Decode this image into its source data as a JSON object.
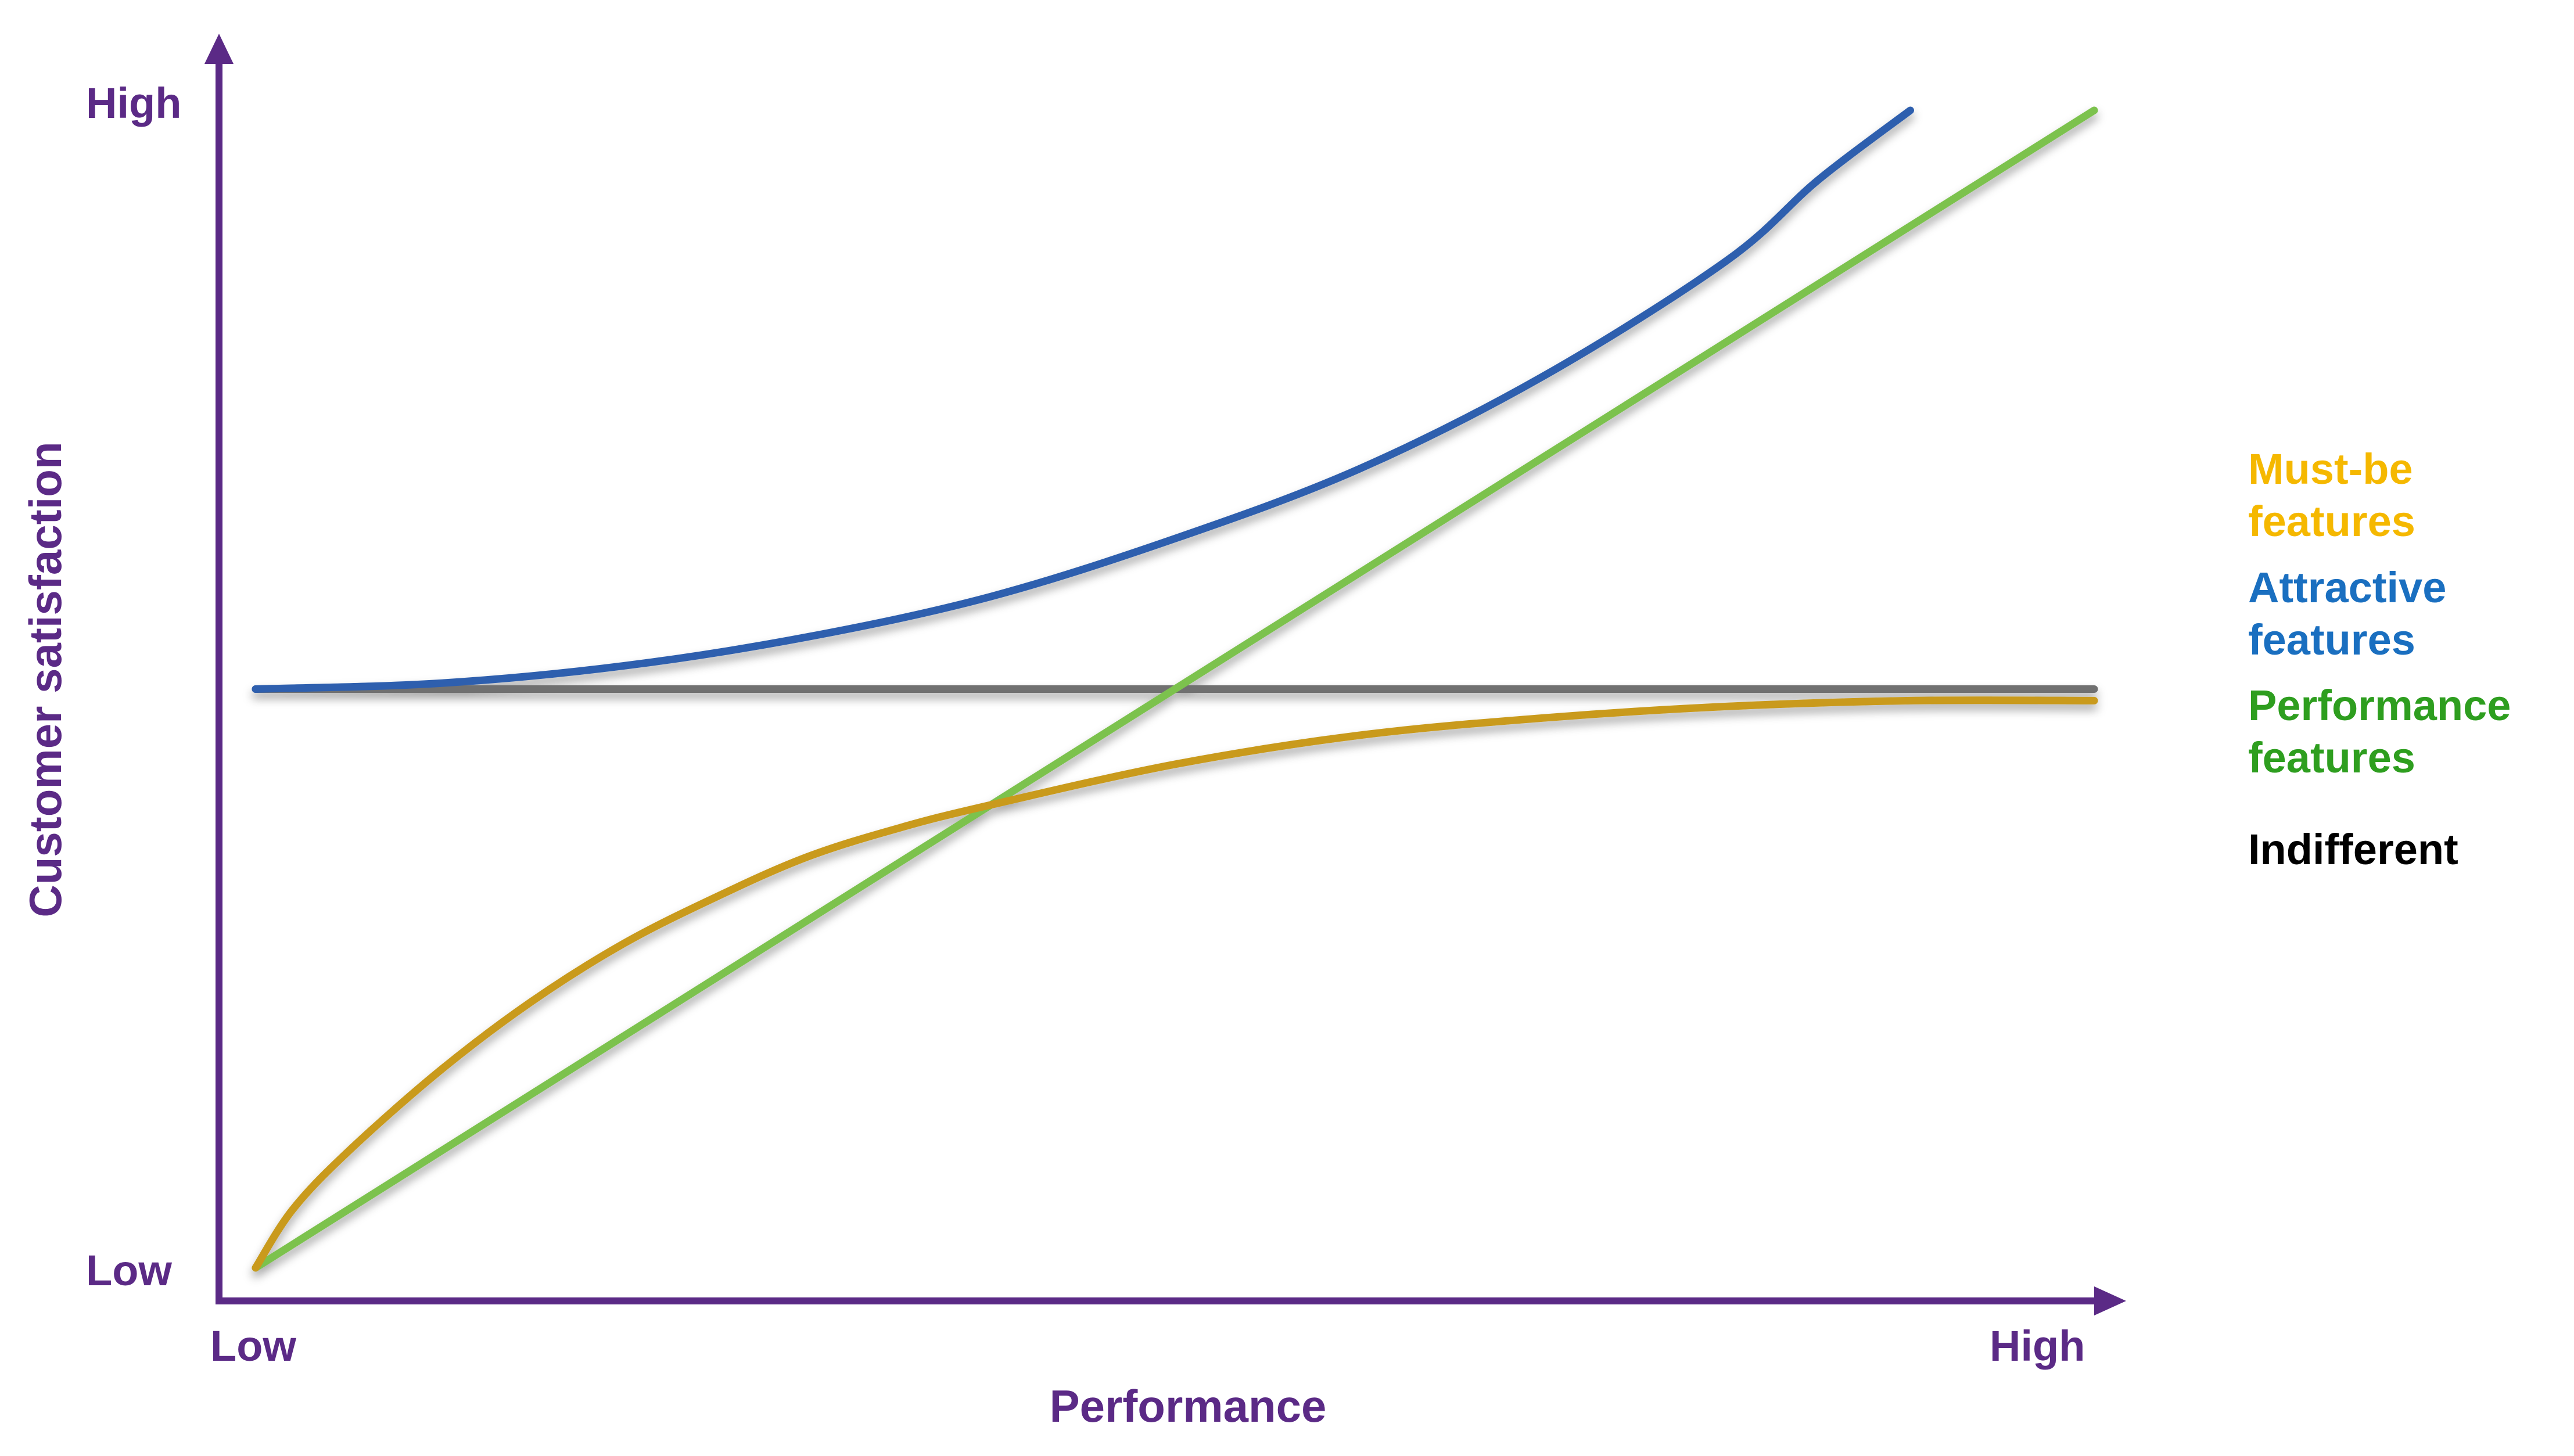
{
  "chart_data": {
    "type": "line",
    "title": "",
    "xlabel": "Performance",
    "ylabel": "Customer satisfaction",
    "x_ticks": [
      "Low",
      "High"
    ],
    "y_ticks": [
      "Low",
      "High"
    ],
    "xlim": [
      0,
      1
    ],
    "ylim": [
      0,
      1
    ],
    "grid": false,
    "legend_position": "right",
    "series": [
      {
        "name": "Must-be features",
        "color": "#f5b800",
        "x": [
          0.0,
          0.02,
          0.05,
          0.1,
          0.15,
          0.2,
          0.25,
          0.3,
          0.35,
          0.4,
          0.5,
          0.6,
          0.7,
          0.8,
          0.9,
          1.0
        ],
        "y": [
          0.0,
          0.05,
          0.1,
          0.17,
          0.23,
          0.28,
          0.32,
          0.355,
          0.38,
          0.4,
          0.435,
          0.46,
          0.475,
          0.485,
          0.49,
          0.49
        ]
      },
      {
        "name": "Attractive features",
        "color": "#1a6fc0",
        "x": [
          0.0,
          0.1,
          0.2,
          0.3,
          0.4,
          0.5,
          0.6,
          0.7,
          0.8,
          0.85,
          0.9
        ],
        "y": [
          0.5,
          0.505,
          0.52,
          0.545,
          0.58,
          0.63,
          0.69,
          0.77,
          0.87,
          0.94,
          1.0
        ]
      },
      {
        "name": "Performance features",
        "color": "#2e9e1f",
        "x": [
          0.0,
          1.0
        ],
        "y": [
          0.0,
          1.0
        ]
      },
      {
        "name": "Indifferent",
        "color": "#000000",
        "x": [
          0.0,
          1.0
        ],
        "y": [
          0.5,
          0.5
        ]
      }
    ]
  },
  "legend": {
    "items": [
      {
        "line1": "Must-be",
        "line2": "features",
        "color": "#f5b800",
        "line_color": "#c99a1a"
      },
      {
        "line1": "Attractive",
        "line2": "features",
        "color": "#1a6fc0",
        "line_color": "#2f5fae"
      },
      {
        "line1": "Performance",
        "line2": "features",
        "color": "#2e9e1f",
        "line_color": "#6da34a"
      },
      {
        "line1": "Indifferent",
        "line2": "",
        "color": "#000000",
        "line_color": "#777777"
      }
    ]
  },
  "colors": {
    "axis": "#5b2a86",
    "series_strokes": [
      "#c99a1a",
      "#2f5fae",
      "#7cc24e",
      "#707070"
    ]
  }
}
